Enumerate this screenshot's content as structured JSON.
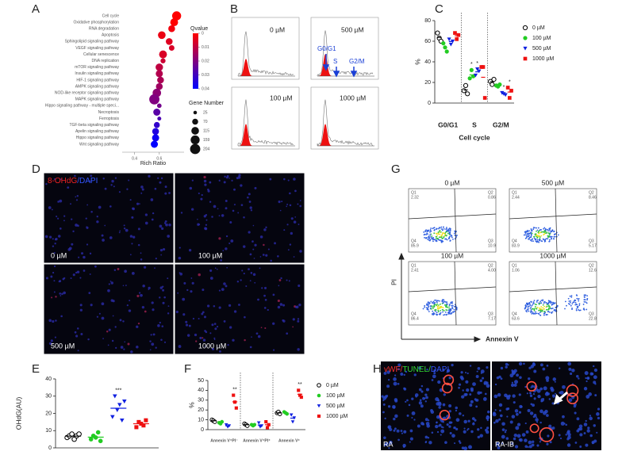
{
  "chart_data": [
    {
      "type": "bubble",
      "panel_label": "A",
      "xlabel": "Rich Ratio",
      "categories": [
        "Cell cycle",
        "Oxidative phosphorylation",
        "RNA degradation",
        "Apoptosis",
        "Sphingolipid signaling pathway",
        "VEGF signaling pathway",
        "Cellular senescence",
        "DNA replication",
        "mTOR signaling pathway",
        "Insulin signaling pathway",
        "HIF-1 signaling pathway",
        "AMPK signaling pathway",
        "NOD-like receptor signaling pathway",
        "MAPK signaling pathway",
        "Hippo signaling pathway - multiple speci...",
        "Necroptosis",
        "Ferroptosis",
        "TGF-beta signaling pathway",
        "Apelin signaling pathway",
        "Hippo signaling pathway",
        "Wnt signaling pathway"
      ],
      "values": [
        0.74,
        0.72,
        0.7,
        0.62,
        0.68,
        0.7,
        0.63,
        0.63,
        0.6,
        0.6,
        0.61,
        0.6,
        0.58,
        0.56,
        0.6,
        0.58,
        0.6,
        0.58,
        0.57,
        0.57,
        0.56
      ],
      "sizes": [
        160,
        120,
        90,
        115,
        90,
        60,
        120,
        50,
        110,
        100,
        90,
        90,
        140,
        204,
        40,
        100,
        30,
        70,
        90,
        100,
        100
      ],
      "qvalues": [
        0,
        0,
        0.002,
        0.003,
        0.005,
        0.006,
        0.006,
        0.008,
        0.01,
        0.012,
        0.013,
        0.015,
        0.018,
        0.02,
        0.022,
        0.026,
        0.028,
        0.032,
        0.035,
        0.038,
        0.04
      ],
      "xlim": [
        0.3,
        0.8
      ],
      "xticks": [
        0.4,
        0.6
      ],
      "qvalue_title": "Qvalue",
      "qlim": [
        0,
        0.04
      ],
      "qvalue_ticks": [
        0,
        0.01,
        0.02,
        0.03,
        0.04
      ],
      "qvalue_colors": [
        "#ff0000",
        "#0000ff"
      ],
      "size_title": "Gene Number",
      "size_ticks": [
        25,
        70,
        115,
        159,
        204
      ]
    },
    {
      "type": "dotplot",
      "panel_label": "C",
      "ylabel": "%",
      "xlabel": "Cell cycle",
      "categories": [
        "G0/G1",
        "S",
        "G2/M"
      ],
      "ylim": [
        0,
        80
      ],
      "yticks": [
        0,
        20,
        40,
        60,
        80
      ],
      "legend": true,
      "separators": true,
      "series": [
        {
          "name": "0 µM",
          "color": "#000000",
          "marker": "circle-open",
          "values": [
            63.7,
            12.7,
            20.7
          ],
          "points": [
            [
              68,
              63,
              60
            ],
            [
              12,
              17,
              9
            ],
            [
              21,
              18,
              23
            ]
          ]
        },
        {
          "name": "100 µM",
          "color": "#22cc22",
          "marker": "circle",
          "values": [
            54,
            27.3,
            17
          ],
          "points": [
            [
              58,
              54,
              50
            ],
            [
              24,
              32,
              26
            ],
            [
              17,
              16,
              18
            ]
          ],
          "stars": [
            null,
            "*",
            null
          ]
        },
        {
          "name": "500 µM",
          "color": "#1020e0",
          "marker": "triangle-down",
          "values": [
            59.7,
            30.3,
            9
          ],
          "points": [
            [
              62,
              57,
              60
            ],
            [
              27,
              33,
              31
            ],
            [
              10,
              9,
              8
            ]
          ],
          "stars": [
            null,
            "*",
            "*"
          ]
        },
        {
          "name": "1000 µM",
          "color": "#ee1111",
          "marker": "square",
          "values": [
            65.3,
            25,
            10.7
          ],
          "points": [
            [
              68,
              62,
              66
            ],
            [
              35,
              35,
              5
            ],
            [
              15,
              5,
              12
            ]
          ],
          "stars": [
            null,
            null,
            "*"
          ]
        }
      ]
    },
    {
      "type": "dotplot",
      "panel_label": "E",
      "ylabel": "OHdG(AU)",
      "categories": [
        null
      ],
      "ylim": [
        0,
        40
      ],
      "yticks": [
        0,
        10,
        20,
        30,
        40
      ],
      "legend": false,
      "separators": false,
      "series": [
        {
          "name": "0 µM",
          "color": "#000000",
          "marker": "circle-open",
          "values": [
            6.8
          ],
          "points": [
            [
              6,
              7,
              8,
              5,
              7,
              8
            ]
          ]
        },
        {
          "name": "100 µM",
          "color": "#22cc22",
          "marker": "circle",
          "values": [
            6.2
          ],
          "points": [
            [
              5,
              7,
              6,
              9,
              4
            ]
          ]
        },
        {
          "name": "500 µM",
          "color": "#1020e0",
          "marker": "triangle-down",
          "values": [
            23
          ],
          "points": [
            [
              18,
              30,
              22,
              25,
              16,
              27
            ]
          ],
          "stars": [
            "***"
          ]
        },
        {
          "name": "1000 µM",
          "color": "#ee1111",
          "marker": "square",
          "values": [
            14
          ],
          "points": [
            [
              12,
              15,
              14,
              13,
              16
            ]
          ]
        }
      ]
    },
    {
      "type": "dotplot",
      "panel_label": "F",
      "ylabel": "%",
      "categories": [
        "Annexin V⁺PI⁻",
        "Annexin V⁺PI⁺",
        "Annexin V⁺"
      ],
      "ylim": [
        0,
        50
      ],
      "yticks": [
        0,
        10,
        20,
        30,
        40,
        50
      ],
      "legend": true,
      "separators": true,
      "series": [
        {
          "name": "0 µM",
          "color": "#000000",
          "marker": "circle-open",
          "values": [
            9,
            5,
            17
          ],
          "points": [
            [
              10,
              9,
              8
            ],
            [
              6,
              5,
              4
            ],
            [
              17,
              18,
              16
            ]
          ]
        },
        {
          "name": "100 µM",
          "color": "#22cc22",
          "marker": "circle",
          "values": [
            7,
            4.7,
            17
          ],
          "points": [
            [
              7,
              6,
              8
            ],
            [
              5,
              4,
              5
            ],
            [
              18,
              17,
              16
            ]
          ]
        },
        {
          "name": "500 µM",
          "color": "#1020e0",
          "marker": "triangle-down",
          "values": [
            4,
            4.7,
            11.7
          ],
          "points": [
            [
              5,
              3,
              4
            ],
            [
              7,
              3,
              4
            ],
            [
              15,
              8,
              12
            ]
          ]
        },
        {
          "name": "1000 µM",
          "color": "#ee1111",
          "marker": "square",
          "values": [
            28.3,
            5,
            36
          ],
          "points": [
            [
              35,
              28,
              22
            ],
            [
              8,
              2,
              5
            ],
            [
              40,
              35,
              33
            ]
          ],
          "stars": [
            "**",
            null,
            "**"
          ]
        }
      ]
    }
  ],
  "panel_b": {
    "label": "B",
    "conditions": [
      "0 µM",
      "500 µM",
      "100 µM",
      "1000 µM"
    ],
    "phases": [
      "G0/G1",
      "S",
      "G2/M"
    ]
  },
  "panel_d": {
    "label": "D",
    "stain": [
      "8-OHdG",
      "/DAPI"
    ],
    "conditions": [
      "0 µM",
      "100 µM",
      "500 µM",
      "1000 µM"
    ]
  },
  "panel_g": {
    "label": "G",
    "conditions": [
      "0 µM",
      "500 µM",
      "100 µM",
      "1000 µM"
    ],
    "y_axis": "PI",
    "x_axis": "Annexin V",
    "quadrant_names": [
      "Q1",
      "Q2",
      "Q3",
      "Q4"
    ],
    "quadrant_values": [
      [
        "2.32",
        "0.86",
        "10.9",
        "85.9"
      ],
      [
        "2.44",
        "8.46",
        "5.17",
        "83.9"
      ],
      [
        "2.41",
        "4.00",
        "7.17",
        "86.4"
      ],
      [
        "1.06",
        "12.6",
        "22.8",
        "63.6"
      ]
    ]
  },
  "panel_h": {
    "label": "H",
    "stain": [
      "vWF/",
      "TUNEL/",
      "DAPI"
    ],
    "conditions": [
      "RA",
      "RA-IB"
    ]
  }
}
